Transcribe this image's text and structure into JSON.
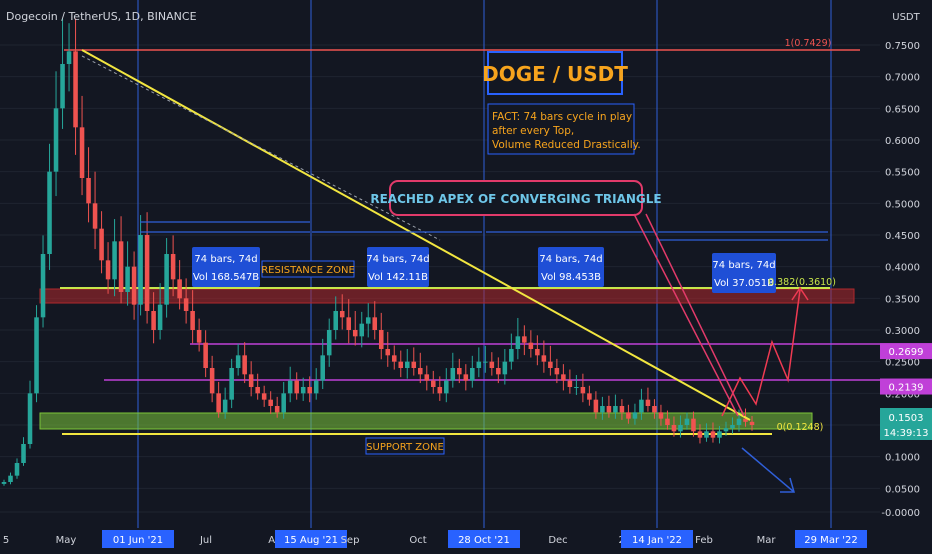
{
  "header": {
    "symbol_line": "Dogecoin / TetherUS, 1D, BINANCE"
  },
  "colors": {
    "background": "#131722",
    "up": "#26a69a",
    "down": "#ef5350",
    "support": "#7cc63a",
    "resistance": "#b0282c",
    "trendline": "#f2e640",
    "pivot_line": "#c040d8",
    "cycle_line": "#2f5fd8",
    "box_blue": "#1f4fd6",
    "orange": "#f7a41d",
    "title_box": "#2962ff",
    "callout": "#e23a6a",
    "projection": "#ef3a52",
    "price_tag": "#26a69a"
  },
  "chart_data": {
    "type": "candlestick",
    "title": "Dogecoin / TetherUS, 1D, BINANCE",
    "x_axis_ticks": [
      "5",
      "May",
      "01 Jun '21",
      "Jul",
      "Aug",
      "15 Aug '21",
      "Sep",
      "Oct",
      "28 Oct '21",
      "Dec",
      "202",
      "14 Jan '22",
      "Feb",
      "Mar",
      "29 Mar '22"
    ],
    "x_axis_highlighted": [
      "01 Jun '21",
      "15 Aug '21",
      "28 Oct '21",
      "14 Jan '22",
      "29 Mar '22"
    ],
    "y_axis_unit": "USDT",
    "y_ticks": [
      0.75,
      0.7,
      0.65,
      0.6,
      0.55,
      0.5,
      0.45,
      0.4,
      0.35,
      0.3,
      0.25,
      0.2,
      0.15,
      0.1,
      0.05,
      0.0
    ],
    "y_tick_labels": [
      "0.7500",
      "0.7000",
      "0.6500",
      "0.6000",
      "0.5500",
      "0.5000",
      "0.4500",
      "0.4000",
      "0.3500",
      "0.3000",
      "0.2500",
      "0.2000",
      "0.1500",
      "0.1000",
      "0.0500",
      "-0.0000"
    ],
    "ylim": [
      -0.01,
      0.8
    ],
    "last_price": "0.1503",
    "countdown": "14:39:13",
    "price_tags": [
      {
        "label": "0.2699",
        "value": 0.2699
      },
      {
        "label": "0.2139",
        "value": 0.2139
      }
    ],
    "fib_levels": [
      {
        "label": "1(0.7429)",
        "value": 0.7429
      },
      {
        "label": "0.382(0.3610)",
        "value": 0.361
      },
      {
        "label": "0(0.1248)",
        "value": 0.1248
      }
    ],
    "cycles": [
      {
        "label": "74 bars, 74d",
        "vol": "Vol 168.547B"
      },
      {
        "label": "74 bars, 74d",
        "vol": "Vol 142.11B"
      },
      {
        "label": "74 bars, 74d",
        "vol": "Vol 98.453B"
      },
      {
        "label": "74 bars, 74d",
        "vol": "Vol 37.051B"
      }
    ],
    "series_close": [
      0.06,
      0.07,
      0.09,
      0.12,
      0.2,
      0.32,
      0.42,
      0.55,
      0.65,
      0.72,
      0.74,
      0.62,
      0.54,
      0.5,
      0.46,
      0.41,
      0.38,
      0.44,
      0.36,
      0.4,
      0.34,
      0.45,
      0.33,
      0.3,
      0.34,
      0.42,
      0.38,
      0.35,
      0.33,
      0.3,
      0.28,
      0.24,
      0.2,
      0.17,
      0.19,
      0.24,
      0.26,
      0.23,
      0.21,
      0.2,
      0.19,
      0.18,
      0.17,
      0.2,
      0.22,
      0.2,
      0.21,
      0.2,
      0.22,
      0.26,
      0.3,
      0.33,
      0.32,
      0.3,
      0.29,
      0.31,
      0.32,
      0.3,
      0.27,
      0.26,
      0.25,
      0.24,
      0.25,
      0.24,
      0.23,
      0.22,
      0.21,
      0.2,
      0.22,
      0.24,
      0.23,
      0.22,
      0.24,
      0.25,
      0.25,
      0.24,
      0.23,
      0.25,
      0.27,
      0.29,
      0.28,
      0.27,
      0.26,
      0.25,
      0.24,
      0.23,
      0.22,
      0.21,
      0.21,
      0.2,
      0.19,
      0.17,
      0.18,
      0.17,
      0.18,
      0.17,
      0.16,
      0.17,
      0.19,
      0.18,
      0.17,
      0.16,
      0.15,
      0.14,
      0.15,
      0.16,
      0.14,
      0.13,
      0.14,
      0.13,
      0.14,
      0.145,
      0.15,
      0.16,
      0.155,
      0.15
    ]
  },
  "annotations": {
    "title": "DOGE / USDT",
    "fact_lines": [
      "FACT: 74 bars cycle in play",
      "after every Top,",
      "Volume Reduced Drastically."
    ],
    "apex": "REACHED APEX OF CONVERGING TRIANGLE",
    "resistance_zone": "RESISTANCE ZONE",
    "support_zone": "SUPPORT ZONE"
  }
}
